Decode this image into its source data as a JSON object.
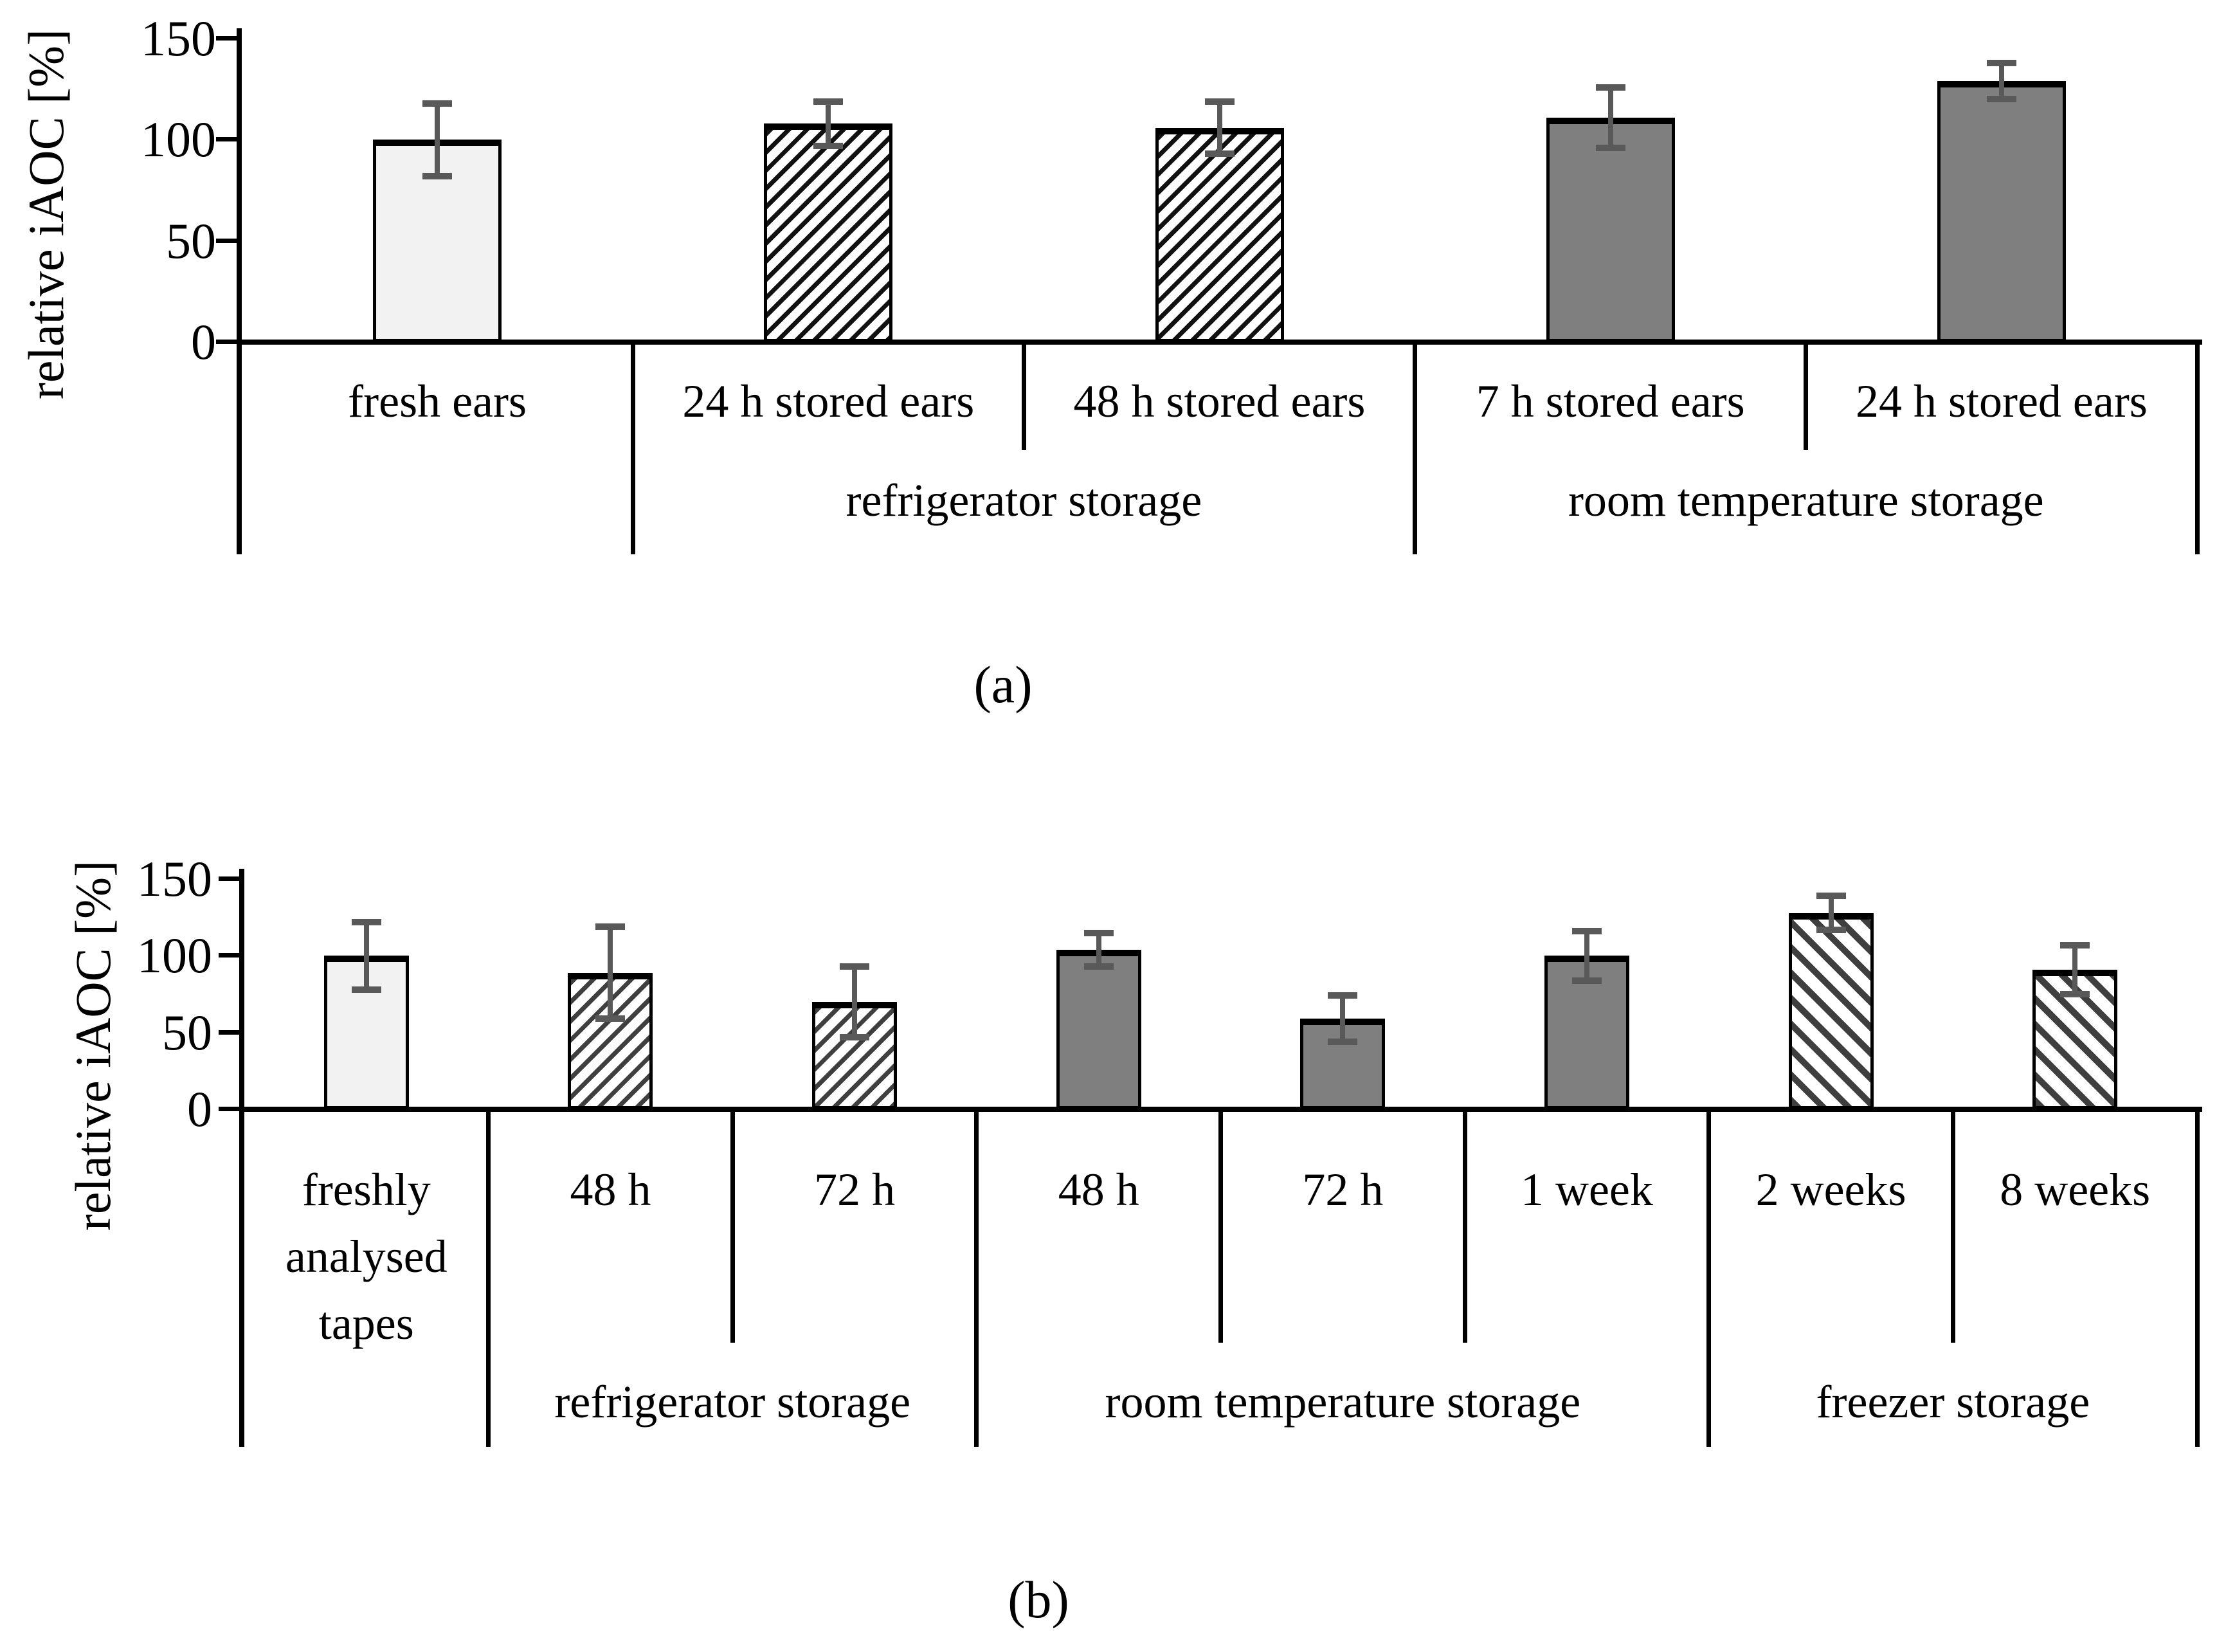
{
  "figure": {
    "background": "#ffffff",
    "captions": {
      "a": "(a)",
      "b": "(b)"
    }
  },
  "colors": {
    "axis": "#000000",
    "bar_border": "#000000",
    "error_bar": "#595959",
    "light_fill": "#f2f2f2",
    "solid_gray_fill": "#7f7f7f",
    "hatch_stripe_chart_a": "#111111",
    "hatch_stripe_chart_b": "#3f3f3f",
    "hatch_background": "#ffffff"
  },
  "chart_data": [
    {
      "id": "a",
      "type": "bar",
      "title": "",
      "xlabel": "",
      "ylabel": "relative iAOC [%]",
      "ylim": [
        0,
        150
      ],
      "yticks": [
        0,
        50,
        100,
        150
      ],
      "grid": false,
      "legend": null,
      "error_bars": true,
      "categories": [
        "fresh ears",
        "24 h stored ears",
        "48 h stored ears",
        "7 h stored ears",
        "24 h stored ears"
      ],
      "values": [
        100,
        108,
        106,
        111,
        129
      ],
      "errors": [
        18,
        11,
        13,
        15,
        9
      ],
      "bar_styles": [
        "light",
        "hatch-up",
        "hatch-up",
        "solid",
        "solid"
      ],
      "groups": [
        {
          "label": "refrigerator storage",
          "start": 1,
          "end": 2
        },
        {
          "label": "room temperature storage",
          "start": 3,
          "end": 4
        }
      ]
    },
    {
      "id": "b",
      "type": "bar",
      "title": "",
      "xlabel": "",
      "ylabel": "relative iAOC [%]",
      "ylim": [
        0,
        150
      ],
      "yticks": [
        0,
        50,
        100,
        150
      ],
      "grid": false,
      "legend": null,
      "error_bars": true,
      "categories": [
        "freshly analysed tapes",
        "48 h",
        "72 h",
        "48 h",
        "72 h",
        "1 week",
        "2 weeks",
        "8 weeks"
      ],
      "values": [
        100,
        89,
        70,
        104,
        59,
        100,
        128,
        91
      ],
      "errors": [
        22,
        30,
        23,
        11,
        15,
        16,
        11,
        16
      ],
      "bar_styles": [
        "light",
        "hatch-up",
        "hatch-up",
        "solid",
        "solid",
        "solid",
        "hatch-down",
        "hatch-down"
      ],
      "groups": [
        {
          "label": "refrigerator storage",
          "start": 1,
          "end": 2
        },
        {
          "label": "room temperature storage",
          "start": 3,
          "end": 5
        },
        {
          "label": "freezer storage",
          "start": 6,
          "end": 7
        }
      ]
    }
  ]
}
